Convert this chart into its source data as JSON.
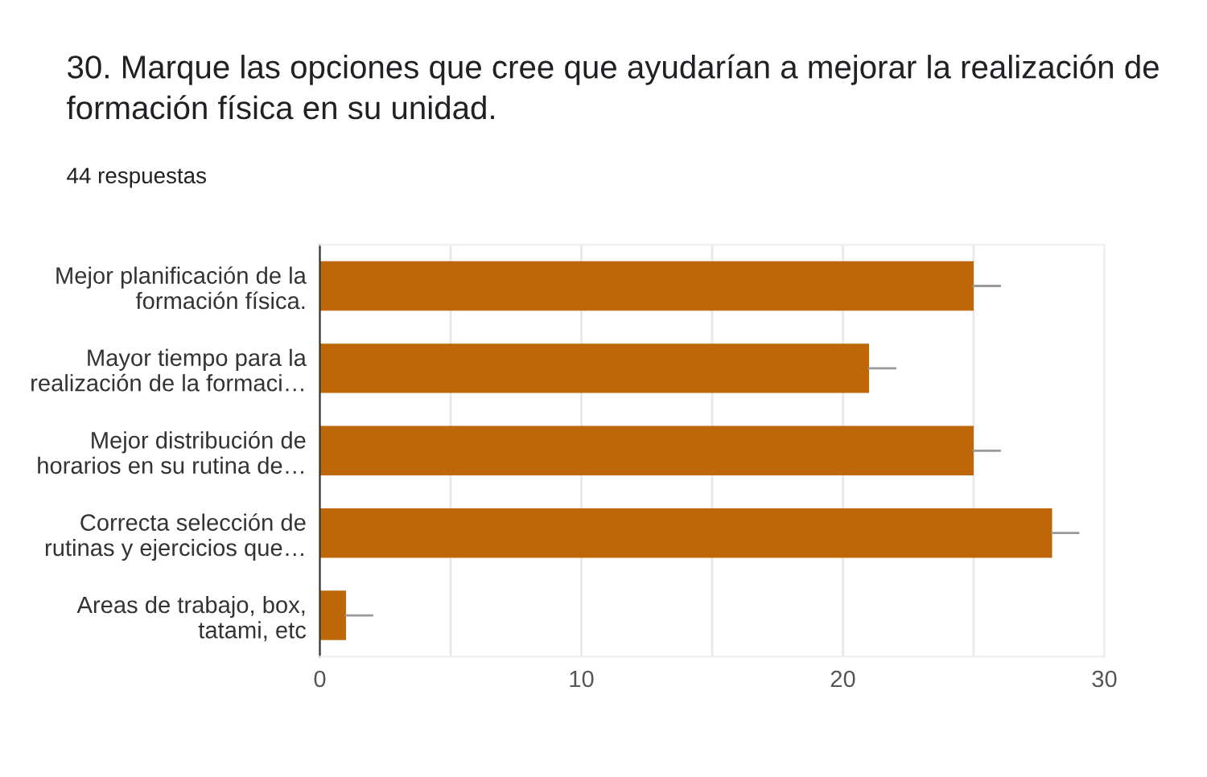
{
  "chart_data": {
    "type": "bar",
    "orientation": "horizontal",
    "title": "30. Marque las opciones que cree que ayudarían a mejorar la realización de\nformación física en su unidad.",
    "subtitle": "44 respuestas",
    "categories": [
      "Mejor planificación de la\nformación física.",
      "Mayor tiempo para la\nrealización de la formaci…",
      "Mejor distribución de\nhorarios en su rutina de…",
      "Correcta selección de\nrutinas y ejercicios que…",
      "Areas de trabajo, box,\ntatami, etc"
    ],
    "values": [
      25,
      21,
      25,
      28,
      1
    ],
    "errors": [
      [
        25,
        26
      ],
      [
        21,
        22
      ],
      [
        25,
        26
      ],
      [
        28,
        29
      ],
      [
        1,
        2
      ]
    ],
    "color": "#bd6709",
    "xlim": [
      0,
      30
    ],
    "xticks": [
      0,
      {
        "value": 5,
        "label": null
      },
      10,
      {
        "value": 15,
        "label": null
      },
      20,
      {
        "value": 25,
        "label": null
      },
      30
    ],
    "grid": "x"
  }
}
